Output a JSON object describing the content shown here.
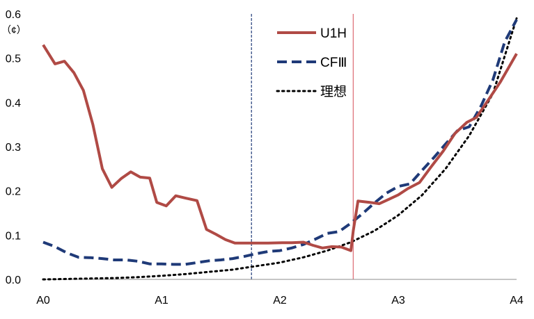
{
  "chart_data": {
    "type": "line",
    "unit_label": "（¢）",
    "x": [
      0.0,
      0.1,
      0.2,
      0.3,
      0.4,
      0.5,
      0.6,
      0.7,
      0.8,
      0.9,
      1.0,
      1.1,
      1.2,
      1.3,
      1.4,
      1.5,
      1.6,
      1.7,
      1.8,
      1.9,
      2.0,
      2.1,
      2.2,
      2.3,
      2.4,
      2.5,
      2.6,
      2.7,
      2.8,
      2.9,
      3.0,
      3.1,
      3.2,
      3.3,
      3.4,
      3.5,
      3.6,
      3.7,
      3.8,
      3.9,
      4.0
    ],
    "x_tick_labels": [
      "A0",
      "A1",
      "A2",
      "A3",
      "A4"
    ],
    "x_range": [
      0,
      4
    ],
    "ylim": [
      0,
      0.6
    ],
    "y_ticks": [
      "0.0",
      "0.1",
      "0.2",
      "0.3",
      "0.4",
      "0.5",
      "0.6"
    ],
    "grid": false,
    "legend_position": "top-center",
    "vertical_markers": [
      {
        "x": 1.76,
        "style": "dashed",
        "color": "#1f3a78"
      },
      {
        "x": 2.62,
        "style": "solid",
        "color": "#e07a82"
      }
    ],
    "series": [
      {
        "name": "U1H",
        "color": "#b04a45",
        "style": "solid",
        "points": [
          [
            0.0,
            0.53
          ],
          [
            0.1,
            0.487
          ],
          [
            0.18,
            0.493
          ],
          [
            0.26,
            0.467
          ],
          [
            0.34,
            0.427
          ],
          [
            0.42,
            0.35
          ],
          [
            0.5,
            0.25
          ],
          [
            0.58,
            0.208
          ],
          [
            0.66,
            0.228
          ],
          [
            0.74,
            0.243
          ],
          [
            0.82,
            0.231
          ],
          [
            0.9,
            0.229
          ],
          [
            0.96,
            0.174
          ],
          [
            1.04,
            0.166
          ],
          [
            1.12,
            0.189
          ],
          [
            1.2,
            0.184
          ],
          [
            1.3,
            0.178
          ],
          [
            1.38,
            0.113
          ],
          [
            1.46,
            0.102
          ],
          [
            1.54,
            0.09
          ],
          [
            1.62,
            0.082
          ],
          [
            1.76,
            0.082
          ],
          [
            1.9,
            0.082
          ],
          [
            2.02,
            0.083
          ],
          [
            2.1,
            0.083
          ],
          [
            2.2,
            0.084
          ],
          [
            2.28,
            0.077
          ],
          [
            2.36,
            0.071
          ],
          [
            2.44,
            0.074
          ],
          [
            2.52,
            0.073
          ],
          [
            2.6,
            0.065
          ],
          [
            2.62,
            0.11
          ],
          [
            2.66,
            0.177
          ],
          [
            2.76,
            0.174
          ],
          [
            2.84,
            0.171
          ],
          [
            2.92,
            0.181
          ],
          [
            3.0,
            0.191
          ],
          [
            3.08,
            0.205
          ],
          [
            3.18,
            0.219
          ],
          [
            3.28,
            0.255
          ],
          [
            3.38,
            0.29
          ],
          [
            3.48,
            0.33
          ],
          [
            3.58,
            0.355
          ],
          [
            3.66,
            0.366
          ],
          [
            3.76,
            0.405
          ],
          [
            3.86,
            0.445
          ],
          [
            3.94,
            0.482
          ],
          [
            4.0,
            0.51
          ]
        ]
      },
      {
        "name": "CFⅢ",
        "color": "#1f3a78",
        "style": "dashed",
        "points": [
          [
            0.0,
            0.084
          ],
          [
            0.1,
            0.074
          ],
          [
            0.2,
            0.06
          ],
          [
            0.3,
            0.05
          ],
          [
            0.4,
            0.049
          ],
          [
            0.5,
            0.047
          ],
          [
            0.6,
            0.044
          ],
          [
            0.7,
            0.044
          ],
          [
            0.8,
            0.041
          ],
          [
            0.9,
            0.035
          ],
          [
            1.0,
            0.035
          ],
          [
            1.1,
            0.034
          ],
          [
            1.2,
            0.034
          ],
          [
            1.3,
            0.038
          ],
          [
            1.4,
            0.042
          ],
          [
            1.5,
            0.044
          ],
          [
            1.6,
            0.047
          ],
          [
            1.7,
            0.052
          ],
          [
            1.8,
            0.058
          ],
          [
            1.9,
            0.063
          ],
          [
            2.0,
            0.065
          ],
          [
            2.1,
            0.071
          ],
          [
            2.2,
            0.079
          ],
          [
            2.3,
            0.091
          ],
          [
            2.4,
            0.104
          ],
          [
            2.5,
            0.108
          ],
          [
            2.6,
            0.127
          ],
          [
            2.7,
            0.149
          ],
          [
            2.8,
            0.173
          ],
          [
            2.9,
            0.195
          ],
          [
            3.0,
            0.21
          ],
          [
            3.1,
            0.216
          ],
          [
            3.2,
            0.246
          ],
          [
            3.3,
            0.275
          ],
          [
            3.4,
            0.306
          ],
          [
            3.5,
            0.336
          ],
          [
            3.6,
            0.345
          ],
          [
            3.7,
            0.392
          ],
          [
            3.8,
            0.451
          ],
          [
            3.9,
            0.537
          ],
          [
            4.0,
            0.587
          ]
        ]
      },
      {
        "name": "理想",
        "color": "#000000",
        "style": "dotted",
        "points": [
          [
            0.0,
            0.0
          ],
          [
            0.2,
            0.001
          ],
          [
            0.4,
            0.002
          ],
          [
            0.6,
            0.003
          ],
          [
            0.8,
            0.005
          ],
          [
            1.0,
            0.008
          ],
          [
            1.2,
            0.012
          ],
          [
            1.4,
            0.017
          ],
          [
            1.6,
            0.022
          ],
          [
            1.8,
            0.03
          ],
          [
            2.0,
            0.038
          ],
          [
            2.2,
            0.05
          ],
          [
            2.4,
            0.065
          ],
          [
            2.6,
            0.084
          ],
          [
            2.8,
            0.11
          ],
          [
            3.0,
            0.145
          ],
          [
            3.2,
            0.19
          ],
          [
            3.4,
            0.25
          ],
          [
            3.6,
            0.325
          ],
          [
            3.8,
            0.42
          ],
          [
            4.0,
            0.59
          ]
        ]
      }
    ]
  }
}
